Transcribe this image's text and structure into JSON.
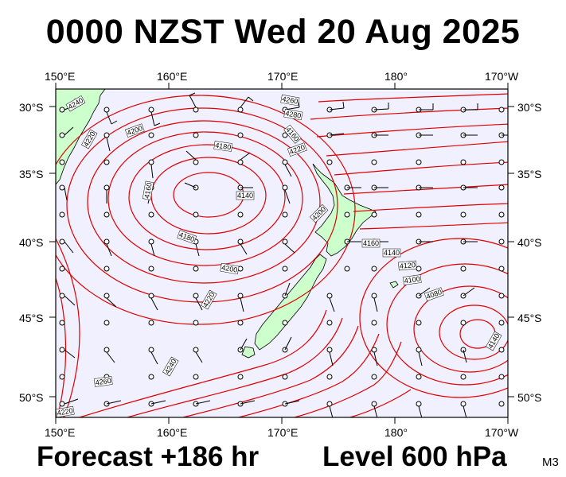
{
  "title": "0000 NZST Wed 20 Aug 2025",
  "forecast": "Forecast +186 hr",
  "level": "Level 600 hPa",
  "model_tag": "M3",
  "map": {
    "lon_labels": [
      "150°E",
      "160°E",
      "170°E",
      "180°",
      "170°W"
    ],
    "lat_labels": [
      "30°S",
      "35°S",
      "40°S",
      "45°S",
      "50°S"
    ],
    "contour_labels": [
      "4240",
      "4220",
      "4200",
      "4180",
      "4160",
      "4140",
      "4260",
      "4280",
      "4100",
      "4120",
      "4080"
    ],
    "colors": {
      "background": "#f0f0ff",
      "land": "#ccffcc",
      "contour": "#e00000",
      "wind": "#000000"
    }
  }
}
